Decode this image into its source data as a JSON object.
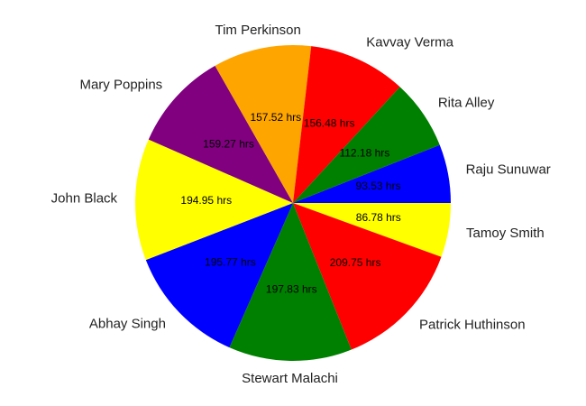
{
  "chart_data": {
    "type": "pie",
    "title": "",
    "unit": "hrs",
    "start": "right (3 o'clock)",
    "direction": "clockwise",
    "slices": [
      {
        "name": "Tamoy Smith",
        "value": 86.78,
        "label": "86.78 hrs",
        "color": "#ffff00"
      },
      {
        "name": "Patrick Huthinson",
        "value": 209.75,
        "label": "209.75 hrs",
        "color": "#ff0000"
      },
      {
        "name": "Stewart Malachi",
        "value": 197.83,
        "label": "197.83 hrs",
        "color": "#008000"
      },
      {
        "name": "Abhay Singh",
        "value": 195.77,
        "label": "195.77 hrs",
        "color": "#0000ff"
      },
      {
        "name": "John Black",
        "value": 194.95,
        "label": "194.95 hrs",
        "color": "#ffff00"
      },
      {
        "name": "Mary Poppins",
        "value": 159.27,
        "label": "159.27 hrs",
        "color": "#800080"
      },
      {
        "name": "Tim Perkinson",
        "value": 157.52,
        "label": "157.52 hrs",
        "color": "#ffa500"
      },
      {
        "name": "Kavvay Verma",
        "value": 156.48,
        "label": "156.48 hrs",
        "color": "#ff0000"
      },
      {
        "name": "Rita Alley",
        "value": 112.18,
        "label": "112.18 hrs",
        "color": "#008000"
      },
      {
        "name": "Raju Sunuwar",
        "value": 93.53,
        "label": "93.53 hrs",
        "color": "#0000ff"
      }
    ]
  }
}
